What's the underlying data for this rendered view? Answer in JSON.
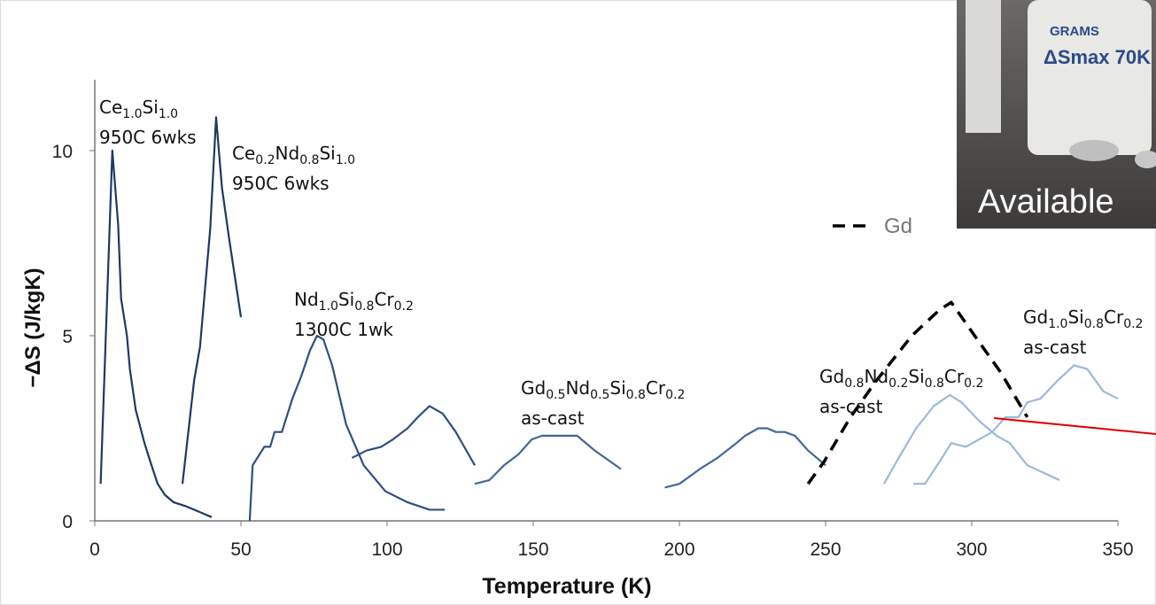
{
  "chart_data": {
    "type": "line",
    "xlabel": "Temperature  (K)",
    "ylabel": "−ΔS (J/kgK)",
    "xlim": [
      0,
      350
    ],
    "xticks": [
      0,
      50,
      100,
      150,
      200,
      250,
      300,
      350
    ],
    "ylim": [
      0,
      12
    ],
    "yticks": [
      0,
      5,
      10
    ],
    "series": [
      {
        "color": "#1f3864",
        "x": [
          2,
          6,
          8,
          9,
          11,
          12,
          14,
          17,
          19,
          21.5,
          24,
          27,
          31,
          37,
          40
        ],
        "values": [
          1.0,
          10.0,
          8.0,
          6.0,
          5.0,
          4.1,
          3.0,
          2.1,
          1.6,
          1.0,
          0.7,
          0.5,
          0.4,
          0.2,
          0.1
        ]
      },
      {
        "color": "#1f3864",
        "x": [
          30,
          34,
          36,
          39.5,
          41.5,
          43.5,
          46,
          50
        ],
        "values": [
          1.0,
          3.8,
          4.7,
          7.9,
          10.9,
          9.0,
          7.6,
          5.5
        ]
      },
      {
        "color": "#2f4f7f",
        "x": [
          53,
          54,
          58,
          60,
          61.5,
          64,
          67.6,
          70.6,
          73.6,
          76,
          78.2,
          81.2,
          86,
          92,
          99.4,
          107,
          114.5,
          119.7
        ],
        "values": [
          0,
          1.5,
          2.0,
          2.0,
          2.4,
          2.4,
          3.3,
          3.9,
          4.6,
          5.0,
          4.9,
          4.2,
          2.6,
          1.5,
          0.8,
          0.5,
          0.3,
          0.3
        ]
      },
      {
        "color": "#2f4f7f",
        "x": [
          88,
          93,
          98,
          102,
          107,
          110.5,
          114.5,
          119,
          123.5,
          130
        ],
        "values": [
          1.7,
          1.9,
          2.0,
          2.2,
          2.5,
          2.8,
          3.1,
          2.9,
          2.4,
          1.5
        ]
      },
      {
        "color": "#44679a",
        "x": [
          130,
          135,
          140,
          145,
          149.5,
          153,
          158.5,
          165,
          171,
          180
        ],
        "values": [
          1.0,
          1.1,
          1.5,
          1.8,
          2.2,
          2.3,
          2.3,
          2.3,
          1.9,
          1.4
        ]
      },
      {
        "color": "#44679a",
        "x": [
          195,
          200,
          207,
          213,
          219.5,
          222.5,
          227,
          230,
          233,
          236,
          239.5,
          244,
          250
        ],
        "values": [
          0.9,
          1.0,
          1.4,
          1.7,
          2.1,
          2.3,
          2.5,
          2.5,
          2.4,
          2.4,
          2.3,
          1.9,
          1.5
        ]
      },
      {
        "name": "Gd",
        "color": "#000000",
        "dashed": true,
        "x": [
          244,
          249.5,
          258.5,
          267.5,
          279.5,
          289,
          293,
          301,
          310,
          319
        ],
        "values": [
          1.0,
          1.6,
          2.8,
          3.8,
          5.0,
          5.7,
          5.9,
          5.0,
          4.0,
          2.8
        ]
      },
      {
        "color": "#9db8de",
        "x": [
          270,
          275,
          281,
          287,
          292.5,
          296.5,
          302.5,
          308.5,
          313,
          319,
          330
        ],
        "values": [
          1.0,
          1.7,
          2.5,
          3.1,
          3.4,
          3.2,
          2.7,
          2.3,
          2.1,
          1.5,
          1.1
        ]
      },
      {
        "color": "#9db8de",
        "x": [
          280,
          284,
          289,
          293,
          298,
          302.5,
          307,
          311.5,
          316,
          319,
          323.5,
          329.5,
          335,
          339.5,
          345,
          350
        ],
        "values": [
          1.0,
          1.0,
          1.6,
          2.1,
          2.0,
          2.2,
          2.4,
          2.8,
          2.8,
          3.2,
          3.3,
          3.8,
          4.2,
          4.1,
          3.5,
          3.3
        ]
      }
    ],
    "annotations": [
      {
        "lines": [
          [
            "Ce",
            "1.0",
            "Si",
            "1.0"
          ],
          [
            "950C 6wks"
          ]
        ]
      },
      {
        "lines": [
          [
            "Ce",
            "0.2",
            "Nd",
            "0.8",
            "Si",
            "1.0"
          ],
          [
            "950C 6wks"
          ]
        ]
      },
      {
        "lines": [
          [
            "Nd",
            "1.0",
            "Si",
            "0.8",
            "Cr",
            "0.2"
          ],
          [
            "1300C 1wk"
          ]
        ]
      },
      {
        "lines": [
          [
            "Gd",
            "0.5",
            "Nd",
            "0.5",
            "Si",
            "0.8",
            "Cr",
            "0.2"
          ],
          [
            "as-cast"
          ]
        ]
      },
      {
        "lines": [
          [
            "Gd",
            "0.8",
            "Nd",
            "0.2",
            "Si",
            "0.8",
            "Cr",
            "0.2"
          ],
          [
            "as-cast"
          ]
        ]
      },
      {
        "lines": [
          [
            "Gd",
            "1.0",
            "Si",
            "0.8",
            "Cr",
            "0.2"
          ],
          [
            "as-cast"
          ]
        ]
      }
    ]
  },
  "inset": {
    "jar_brand": "GRAMS",
    "jar_label": "ΔSmax 70K",
    "caption": "Available"
  }
}
